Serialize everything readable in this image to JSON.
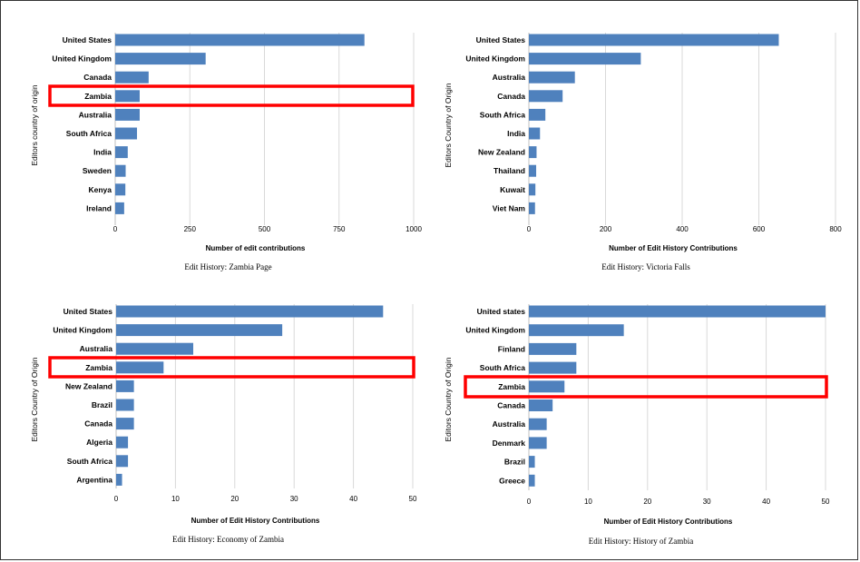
{
  "colors": {
    "bar": "#4f81bd",
    "grid": "#d9d9d9",
    "highlight": "#ff0000"
  },
  "chart_data": [
    {
      "type": "bar",
      "orientation": "horizontal",
      "caption": "Edit History: Zambia Page",
      "xlabel": "Number of edit contributions",
      "ylabel": "Editors country of origin",
      "categories": [
        "United States",
        "United Kingdom",
        "Canada",
        "Zambia",
        "Australia",
        "South Africa",
        "India",
        "Sweden",
        "Kenya",
        "Ireland"
      ],
      "values": [
        835,
        303,
        112,
        82,
        82,
        73,
        42,
        35,
        34,
        30
      ],
      "xticks": [
        "0",
        "250",
        "500",
        "750",
        "1000"
      ],
      "xlim": [
        0,
        1000
      ],
      "grid": true,
      "highlighted": "Zambia"
    },
    {
      "type": "bar",
      "orientation": "horizontal",
      "caption": "Edit History: Victoria Falls",
      "xlabel": "Number of Edit History Contributions",
      "ylabel": "Editors Country of Origin",
      "categories": [
        "United States",
        "United Kingdom",
        "Australia",
        "Canada",
        "South Africa",
        "India",
        "New Zealand",
        "Thailand",
        "Kuwait",
        "Viet Nam"
      ],
      "values": [
        652,
        292,
        120,
        88,
        43,
        29,
        20,
        19,
        17,
        16
      ],
      "xticks": [
        "0",
        "200",
        "400",
        "600",
        "800"
      ],
      "xlim": [
        0,
        800
      ],
      "grid": true,
      "highlighted": ""
    },
    {
      "type": "bar",
      "orientation": "horizontal",
      "caption": "Edit History: Economy of Zambia",
      "xlabel": "Number of Edit History Contributions",
      "ylabel": "Editors Country of Origin",
      "categories": [
        "United States",
        "United Kingdom",
        "Australia",
        "Zambia",
        "New Zealand",
        "Brazil",
        "Canada",
        "Algeria",
        "South Africa",
        "Argentina"
      ],
      "values": [
        45,
        28,
        13,
        8,
        3,
        3,
        3,
        2,
        2,
        1
      ],
      "xticks": [
        "0",
        "10",
        "20",
        "30",
        "40",
        "50"
      ],
      "xlim": [
        0,
        50
      ],
      "grid": true,
      "highlighted": "Zambia"
    },
    {
      "type": "bar",
      "orientation": "horizontal",
      "caption": "Edit History: History of Zambia",
      "xlabel": "Number of Edit History Contributions",
      "ylabel": "Editors Country of Origin",
      "categories": [
        "United states",
        "United Kingdom",
        "Finland",
        "South Africa",
        "Zambia",
        "Canada",
        "Australia",
        "Denmark",
        "Brazil",
        "Greece"
      ],
      "values": [
        50,
        16,
        8,
        8,
        6,
        4,
        3,
        3,
        1,
        1
      ],
      "xticks": [
        "0",
        "10",
        "20",
        "30",
        "40",
        "50"
      ],
      "xlim": [
        0,
        50
      ],
      "grid": true,
      "highlighted": "Zambia"
    }
  ]
}
